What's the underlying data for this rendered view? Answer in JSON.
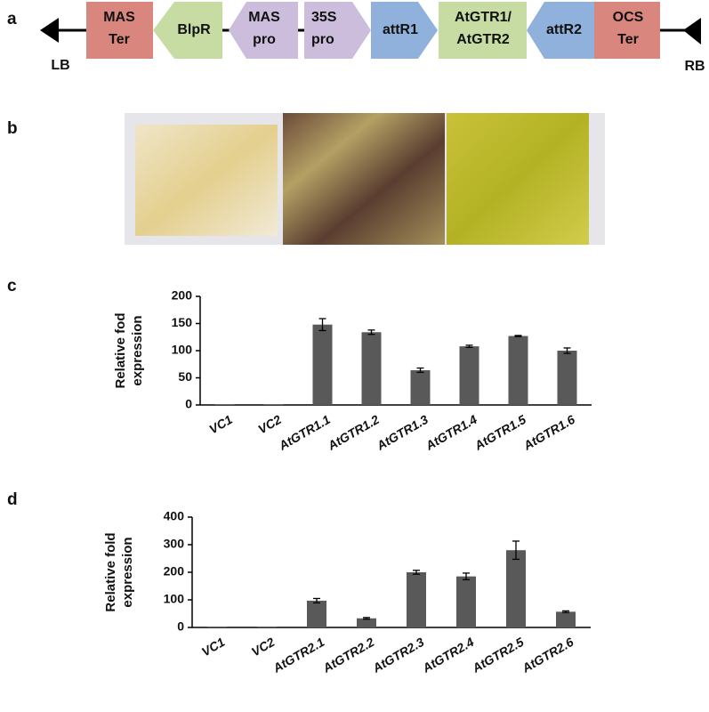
{
  "panels": [
    "a",
    "b",
    "c",
    "d"
  ],
  "construct": {
    "left_border": "LB",
    "right_border": "RB",
    "elements": [
      {
        "lines": [
          "MAS",
          "Ter"
        ]
      },
      {
        "lines": [
          "BlpR"
        ]
      },
      {
        "lines": [
          "MAS",
          "pro"
        ]
      },
      {
        "lines": [
          "35S",
          "pro"
        ]
      },
      {
        "lines": [
          "attR1"
        ]
      },
      {
        "lines": [
          "AtGTR1/",
          "AtGTR2"
        ]
      },
      {
        "lines": [
          "attR2"
        ]
      },
      {
        "lines": [
          "OCS",
          "Ter"
        ]
      }
    ]
  },
  "chart_data": [
    {
      "type": "bar",
      "ylabel": [
        "Relative fod",
        "expression"
      ],
      "categories": [
        "VC1",
        "VC2",
        "AtGTR1.1",
        "AtGTR1.2",
        "AtGTR1.3",
        "AtGTR1.4",
        "AtGTR1.5",
        "AtGTR1.6"
      ],
      "values": [
        1,
        1,
        148,
        134,
        64,
        108,
        127,
        100
      ],
      "errors": [
        0,
        0,
        11,
        4,
        4,
        2,
        1,
        5
      ],
      "color": "#595959",
      "ylim": [
        0,
        200
      ],
      "yticks": [
        0,
        50,
        100,
        150,
        200
      ]
    },
    {
      "type": "bar",
      "ylabel": [
        "Relative fold",
        "expression"
      ],
      "categories": [
        "VC1",
        "VC2",
        "AtGTR2.1",
        "AtGTR2.2",
        "AtGTR2.3",
        "AtGTR2.4",
        "AtGTR2.5",
        "AtGTR2.6"
      ],
      "values": [
        1,
        1,
        97,
        33,
        200,
        185,
        280,
        57
      ],
      "errors": [
        0,
        0,
        8,
        3,
        7,
        12,
        33,
        3
      ],
      "color": "#595959",
      "ylim": [
        0,
        400
      ],
      "yticks": [
        0,
        100,
        200,
        300,
        400
      ]
    }
  ]
}
